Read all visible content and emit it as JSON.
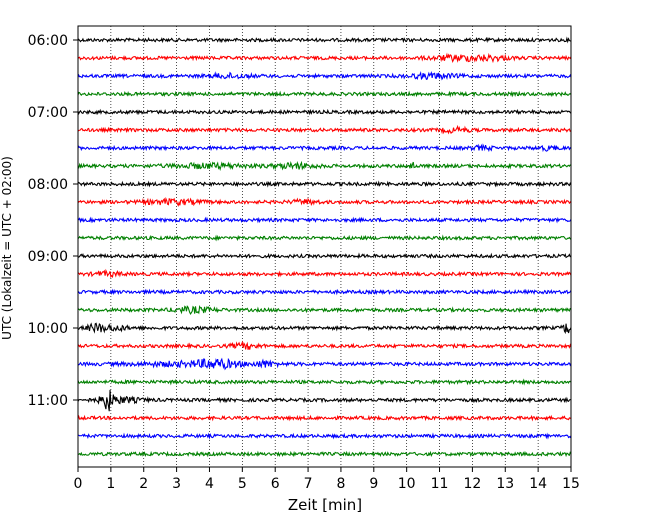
{
  "chart_data": {
    "type": "line",
    "title": "",
    "xlabel": "Zeit  [min]",
    "ylabel": "UTC (Lokalzeit = UTC + 02:00)",
    "xlim": [
      0,
      15
    ],
    "x_ticks": [
      0,
      1,
      2,
      3,
      4,
      5,
      6,
      7,
      8,
      9,
      10,
      11,
      12,
      13,
      14,
      15
    ],
    "grid": "vertical dotted lines at each minute",
    "y_tick_labels": [
      "06:00",
      "07:00",
      "08:00",
      "09:00",
      "10:00",
      "11:00"
    ],
    "trace_colors": [
      "#000000",
      "#ff0000",
      "#0000ff",
      "#008000"
    ],
    "traces": [
      {
        "start": "06:00",
        "color": "#000000",
        "events": []
      },
      {
        "start": "06:15",
        "color": "#ff0000",
        "events": [
          {
            "t": 11.6,
            "amp": 1.4,
            "width": 0.8
          },
          {
            "t": 12.6,
            "amp": 1.0,
            "width": 0.5
          }
        ]
      },
      {
        "start": "06:30",
        "color": "#0000ff",
        "events": [
          {
            "t": 4.6,
            "amp": 1.1,
            "width": 0.6
          },
          {
            "t": 10.8,
            "amp": 1.3,
            "width": 0.7
          }
        ]
      },
      {
        "start": "06:45",
        "color": "#008000",
        "events": []
      },
      {
        "start": "07:00",
        "color": "#000000",
        "events": []
      },
      {
        "start": "07:15",
        "color": "#ff0000",
        "events": [
          {
            "t": 11.5,
            "amp": 1.2,
            "width": 0.4
          }
        ]
      },
      {
        "start": "07:30",
        "color": "#0000ff",
        "events": [
          {
            "t": 12.3,
            "amp": 1.0,
            "width": 0.3
          },
          {
            "t": 14.3,
            "amp": 1.0,
            "width": 0.3
          }
        ]
      },
      {
        "start": "07:45",
        "color": "#008000",
        "events": [
          {
            "t": 4.0,
            "amp": 1.2,
            "width": 1.2
          },
          {
            "t": 6.6,
            "amp": 1.4,
            "width": 0.6
          },
          {
            "t": 10.15,
            "amp": 2.2,
            "width": 0.1
          }
        ]
      },
      {
        "start": "08:00",
        "color": "#000000",
        "events": []
      },
      {
        "start": "08:15",
        "color": "#ff0000",
        "events": [
          {
            "t": 2.9,
            "amp": 1.3,
            "width": 0.8
          },
          {
            "t": 6.9,
            "amp": 1.1,
            "width": 0.4
          }
        ]
      },
      {
        "start": "08:30",
        "color": "#0000ff",
        "events": []
      },
      {
        "start": "08:45",
        "color": "#008000",
        "events": []
      },
      {
        "start": "09:00",
        "color": "#000000",
        "events": []
      },
      {
        "start": "09:15",
        "color": "#ff0000",
        "events": [
          {
            "t": 0.9,
            "amp": 1.1,
            "width": 0.4
          }
        ]
      },
      {
        "start": "09:30",
        "color": "#0000ff",
        "events": []
      },
      {
        "start": "09:45",
        "color": "#008000",
        "events": [
          {
            "t": 3.5,
            "amp": 1.5,
            "width": 0.6
          }
        ]
      },
      {
        "start": "10:00",
        "color": "#000000",
        "events": [
          {
            "t": 0.55,
            "amp": 2.2,
            "width": 0.25
          },
          {
            "t": 1.1,
            "amp": 1.3,
            "width": 0.4
          },
          {
            "t": 14.9,
            "amp": 3.0,
            "width": 0.15
          }
        ]
      },
      {
        "start": "10:15",
        "color": "#ff0000",
        "events": [
          {
            "t": 5.1,
            "amp": 1.4,
            "width": 0.4
          }
        ]
      },
      {
        "start": "10:30",
        "color": "#0000ff",
        "events": [
          {
            "t": 3.6,
            "amp": 1.2,
            "width": 1.8
          },
          {
            "t": 4.2,
            "amp": 1.8,
            "width": 0.5
          },
          {
            "t": 5.7,
            "amp": 1.4,
            "width": 0.3
          }
        ]
      },
      {
        "start": "10:45",
        "color": "#008000",
        "events": []
      },
      {
        "start": "11:00",
        "color": "#000000",
        "events": [
          {
            "t": 0.9,
            "amp": 5.5,
            "width": 0.18
          },
          {
            "t": 1.3,
            "amp": 1.5,
            "width": 0.6
          }
        ]
      },
      {
        "start": "11:15",
        "color": "#ff0000",
        "events": []
      },
      {
        "start": "11:30",
        "color": "#0000ff",
        "events": []
      },
      {
        "start": "11:45",
        "color": "#008000",
        "events": []
      }
    ]
  }
}
